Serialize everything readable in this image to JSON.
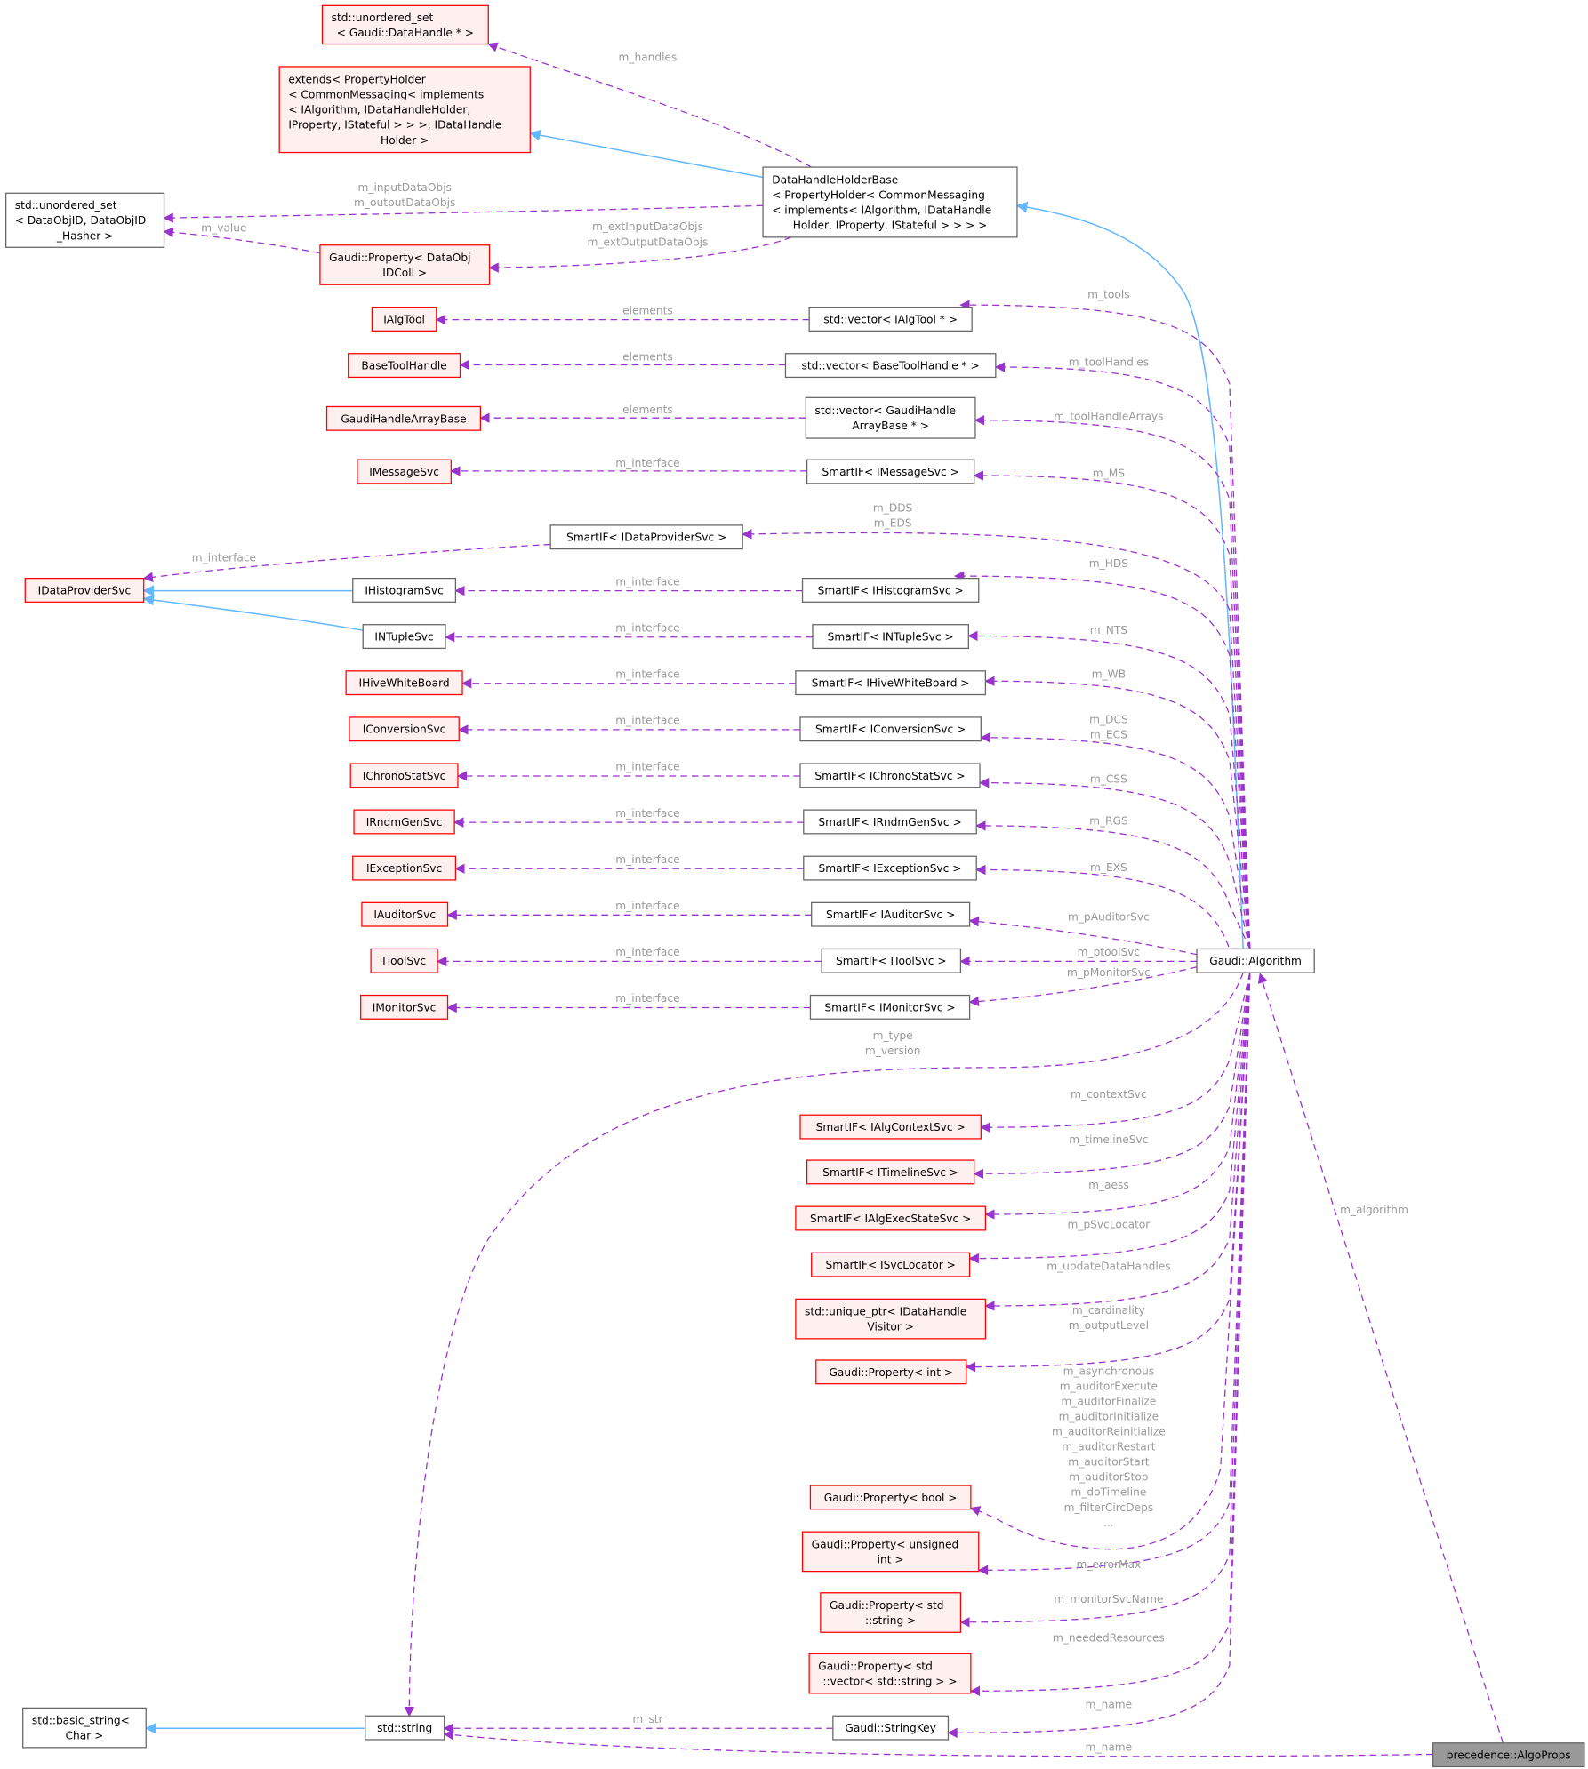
{
  "colors": {
    "usage_edge": "#9a32cd",
    "inherit_edge": "#63b8ff",
    "undocumented_border": "#ff0000",
    "undocumented_fill": "#fff0f0",
    "documented_border": "#666666",
    "focus_fill": "#999999",
    "edge_label": "#9a9a9a"
  },
  "nodes": [
    {
      "id": "uset_dh",
      "style": "red",
      "lines": [
        "std::unordered_set",
        "< Gaudi::DataHandle * >"
      ]
    },
    {
      "id": "extends",
      "style": "red",
      "lines": [
        "extends< PropertyHolder",
        "< CommonMessaging< implements",
        "< IAlgorithm, IDataHandleHolder,",
        " IProperty, IStateful > > >, IDataHandle",
        "Holder >"
      ]
    },
    {
      "id": "uset_doid",
      "style": "gray",
      "lines": [
        "std::unordered_set",
        "< DataObjID, DataObjID",
        "_Hasher >"
      ]
    },
    {
      "id": "prop_doidcoll",
      "style": "red",
      "lines": [
        "Gaudi::Property< DataObj",
        "IDColl >"
      ]
    },
    {
      "id": "dhhb",
      "style": "gray",
      "lines": [
        "DataHandleHolderBase",
        "< PropertyHolder< CommonMessaging",
        "< implements< IAlgorithm, IDataHandle",
        "Holder, IProperty, IStateful > > > >"
      ]
    },
    {
      "id": "ialgtool",
      "style": "red",
      "lines": [
        "IAlgTool"
      ]
    },
    {
      "id": "vec_ialgtool",
      "style": "gray",
      "lines": [
        "std::vector< IAlgTool * >"
      ]
    },
    {
      "id": "basetoolhandle",
      "style": "red",
      "lines": [
        "BaseToolHandle"
      ]
    },
    {
      "id": "vec_bth",
      "style": "gray",
      "lines": [
        "std::vector< BaseToolHandle * >"
      ]
    },
    {
      "id": "gharraybase",
      "style": "red",
      "lines": [
        "GaudiHandleArrayBase"
      ]
    },
    {
      "id": "vec_gha",
      "style": "gray",
      "lines": [
        "std::vector< GaudiHandle",
        "ArrayBase * >"
      ]
    },
    {
      "id": "imessagesvc",
      "style": "red",
      "lines": [
        "IMessageSvc"
      ]
    },
    {
      "id": "sif_msg",
      "style": "gray",
      "lines": [
        "SmartIF< IMessageSvc >"
      ]
    },
    {
      "id": "sif_dp",
      "style": "gray",
      "lines": [
        "SmartIF< IDataProviderSvc >"
      ]
    },
    {
      "id": "idataprovidersvc",
      "style": "red",
      "lines": [
        "IDataProviderSvc"
      ]
    },
    {
      "id": "ihistogramsvc",
      "style": "gray",
      "lines": [
        "IHistogramSvc"
      ]
    },
    {
      "id": "sif_hist",
      "style": "gray",
      "lines": [
        "SmartIF< IHistogramSvc >"
      ]
    },
    {
      "id": "intuplesvc",
      "style": "gray",
      "lines": [
        "INTupleSvc"
      ]
    },
    {
      "id": "sif_nt",
      "style": "gray",
      "lines": [
        "SmartIF< INTupleSvc >"
      ]
    },
    {
      "id": "ihivewb",
      "style": "red",
      "lines": [
        "IHiveWhiteBoard"
      ]
    },
    {
      "id": "sif_wb",
      "style": "gray",
      "lines": [
        "SmartIF< IHiveWhiteBoard >"
      ]
    },
    {
      "id": "iconvsvc",
      "style": "red",
      "lines": [
        "IConversionSvc"
      ]
    },
    {
      "id": "sif_conv",
      "style": "gray",
      "lines": [
        "SmartIF< IConversionSvc >"
      ]
    },
    {
      "id": "ichronosvc",
      "style": "red",
      "lines": [
        "IChronoStatSvc"
      ]
    },
    {
      "id": "sif_chrono",
      "style": "gray",
      "lines": [
        "SmartIF< IChronoStatSvc >"
      ]
    },
    {
      "id": "irndmsvc",
      "style": "red",
      "lines": [
        "IRndmGenSvc"
      ]
    },
    {
      "id": "sif_rndm",
      "style": "gray",
      "lines": [
        "SmartIF< IRndmGenSvc >"
      ]
    },
    {
      "id": "iexcsvc",
      "style": "red",
      "lines": [
        "IExceptionSvc"
      ]
    },
    {
      "id": "sif_exc",
      "style": "gray",
      "lines": [
        "SmartIF< IExceptionSvc >"
      ]
    },
    {
      "id": "iaudsvc",
      "style": "red",
      "lines": [
        "IAuditorSvc"
      ]
    },
    {
      "id": "sif_aud",
      "style": "gray",
      "lines": [
        "SmartIF< IAuditorSvc >"
      ]
    },
    {
      "id": "itoolsvc",
      "style": "red",
      "lines": [
        "IToolSvc"
      ]
    },
    {
      "id": "sif_tool",
      "style": "gray",
      "lines": [
        "SmartIF< IToolSvc >"
      ]
    },
    {
      "id": "imonsvc",
      "style": "red",
      "lines": [
        "IMonitorSvc"
      ]
    },
    {
      "id": "sif_mon",
      "style": "gray",
      "lines": [
        "SmartIF< IMonitorSvc >"
      ]
    },
    {
      "id": "algorithm",
      "style": "gray",
      "lines": [
        "Gaudi::Algorithm"
      ]
    },
    {
      "id": "sif_ctx",
      "style": "red",
      "lines": [
        "SmartIF< IAlgContextSvc >"
      ]
    },
    {
      "id": "sif_tl",
      "style": "red",
      "lines": [
        "SmartIF< ITimelineSvc >"
      ]
    },
    {
      "id": "sif_aes",
      "style": "red",
      "lines": [
        "SmartIF< IAlgExecStateSvc >"
      ]
    },
    {
      "id": "sif_sl",
      "style": "red",
      "lines": [
        "SmartIF< ISvcLocator >"
      ]
    },
    {
      "id": "uptr_dhv",
      "style": "red",
      "lines": [
        "std::unique_ptr< IDataHandle",
        "Visitor >"
      ]
    },
    {
      "id": "prop_int",
      "style": "red",
      "lines": [
        "Gaudi::Property< int >"
      ]
    },
    {
      "id": "prop_bool",
      "style": "red",
      "lines": [
        "Gaudi::Property< bool >"
      ]
    },
    {
      "id": "prop_uint",
      "style": "red",
      "lines": [
        "Gaudi::Property< unsigned",
        "int >"
      ]
    },
    {
      "id": "prop_str",
      "style": "red",
      "lines": [
        "Gaudi::Property< std",
        "::string >"
      ]
    },
    {
      "id": "prop_vstr",
      "style": "red",
      "lines": [
        "Gaudi::Property< std",
        "::vector< std::string > >"
      ]
    },
    {
      "id": "basic_string",
      "style": "gray",
      "lines": [
        "std::basic_string<",
        "Char >"
      ]
    },
    {
      "id": "std_string",
      "style": "gray",
      "lines": [
        "std::string"
      ]
    },
    {
      "id": "stringkey",
      "style": "gray",
      "lines": [
        "Gaudi::StringKey"
      ]
    },
    {
      "id": "algoprops",
      "style": "focus",
      "lines": [
        "precedence::AlgoProps"
      ]
    }
  ],
  "edges": [
    {
      "from": "dhhb",
      "to": "uset_dh",
      "kind": "usage",
      "label": [
        "m_handles"
      ]
    },
    {
      "from": "dhhb",
      "to": "extends",
      "kind": "inherit",
      "label": []
    },
    {
      "from": "dhhb",
      "to": "uset_doid",
      "kind": "usage",
      "label": [
        "m_inputDataObjs",
        "m_outputDataObjs"
      ]
    },
    {
      "from": "dhhb",
      "to": "prop_doidcoll",
      "kind": "usage",
      "label": [
        "m_extInputDataObjs",
        "m_extOutputDataObjs"
      ]
    },
    {
      "from": "prop_doidcoll",
      "to": "uset_doid",
      "kind": "usage",
      "label": [
        "m_value"
      ]
    },
    {
      "from": "algorithm",
      "to": "dhhb",
      "kind": "inherit",
      "label": []
    },
    {
      "from": "vec_ialgtool",
      "to": "ialgtool",
      "kind": "usage",
      "label": [
        "elements"
      ]
    },
    {
      "from": "vec_bth",
      "to": "basetoolhandle",
      "kind": "usage",
      "label": [
        "elements"
      ]
    },
    {
      "from": "vec_gha",
      "to": "gharraybase",
      "kind": "usage",
      "label": [
        "elements"
      ]
    },
    {
      "from": "sif_msg",
      "to": "imessagesvc",
      "kind": "usage",
      "label": [
        "m_interface"
      ]
    },
    {
      "from": "sif_dp",
      "to": "idataprovidersvc",
      "kind": "usage",
      "label": [
        "m_interface"
      ]
    },
    {
      "from": "ihistogramsvc",
      "to": "idataprovidersvc",
      "kind": "inherit",
      "label": []
    },
    {
      "from": "intuplesvc",
      "to": "idataprovidersvc",
      "kind": "inherit",
      "label": []
    },
    {
      "from": "sif_hist",
      "to": "ihistogramsvc",
      "kind": "usage",
      "label": [
        "m_interface"
      ]
    },
    {
      "from": "sif_nt",
      "to": "intuplesvc",
      "kind": "usage",
      "label": [
        "m_interface"
      ]
    },
    {
      "from": "sif_wb",
      "to": "ihivewb",
      "kind": "usage",
      "label": [
        "m_interface"
      ]
    },
    {
      "from": "sif_conv",
      "to": "iconvsvc",
      "kind": "usage",
      "label": [
        "m_interface"
      ]
    },
    {
      "from": "sif_chrono",
      "to": "ichronosvc",
      "kind": "usage",
      "label": [
        "m_interface"
      ]
    },
    {
      "from": "sif_rndm",
      "to": "irndmsvc",
      "kind": "usage",
      "label": [
        "m_interface"
      ]
    },
    {
      "from": "sif_exc",
      "to": "iexcsvc",
      "kind": "usage",
      "label": [
        "m_interface"
      ]
    },
    {
      "from": "sif_aud",
      "to": "iaudsvc",
      "kind": "usage",
      "label": [
        "m_interface"
      ]
    },
    {
      "from": "sif_tool",
      "to": "itoolsvc",
      "kind": "usage",
      "label": [
        "m_interface"
      ]
    },
    {
      "from": "sif_mon",
      "to": "imonsvc",
      "kind": "usage",
      "label": [
        "m_interface"
      ]
    },
    {
      "from": "algorithm",
      "to": "vec_ialgtool",
      "kind": "usage",
      "label": [
        "m_tools"
      ]
    },
    {
      "from": "algorithm",
      "to": "vec_bth",
      "kind": "usage",
      "label": [
        "m_toolHandles"
      ]
    },
    {
      "from": "algorithm",
      "to": "vec_gha",
      "kind": "usage",
      "label": [
        "m_toolHandleArrays"
      ]
    },
    {
      "from": "algorithm",
      "to": "sif_msg",
      "kind": "usage",
      "label": [
        "m_MS"
      ]
    },
    {
      "from": "algorithm",
      "to": "sif_dp",
      "kind": "usage",
      "label": [
        "m_DDS",
        "m_EDS"
      ]
    },
    {
      "from": "algorithm",
      "to": "sif_hist",
      "kind": "usage",
      "label": [
        "m_HDS"
      ]
    },
    {
      "from": "algorithm",
      "to": "sif_nt",
      "kind": "usage",
      "label": [
        "m_NTS"
      ]
    },
    {
      "from": "algorithm",
      "to": "sif_wb",
      "kind": "usage",
      "label": [
        "m_WB"
      ]
    },
    {
      "from": "algorithm",
      "to": "sif_conv",
      "kind": "usage",
      "label": [
        "m_DCS",
        "m_ECS"
      ]
    },
    {
      "from": "algorithm",
      "to": "sif_chrono",
      "kind": "usage",
      "label": [
        "m_CSS"
      ]
    },
    {
      "from": "algorithm",
      "to": "sif_rndm",
      "kind": "usage",
      "label": [
        "m_RGS"
      ]
    },
    {
      "from": "algorithm",
      "to": "sif_exc",
      "kind": "usage",
      "label": [
        "m_EXS"
      ]
    },
    {
      "from": "algorithm",
      "to": "sif_aud",
      "kind": "usage",
      "label": [
        "m_pAuditorSvc"
      ]
    },
    {
      "from": "algorithm",
      "to": "sif_tool",
      "kind": "usage",
      "label": [
        "m_ptoolSvc"
      ]
    },
    {
      "from": "algorithm",
      "to": "sif_mon",
      "kind": "usage",
      "label": [
        "m_pMonitorSvc"
      ]
    },
    {
      "from": "algorithm",
      "to": "std_string",
      "kind": "usage",
      "label": [
        "m_type",
        "m_version"
      ]
    },
    {
      "from": "algorithm",
      "to": "sif_ctx",
      "kind": "usage",
      "label": [
        "m_contextSvc"
      ]
    },
    {
      "from": "algorithm",
      "to": "sif_tl",
      "kind": "usage",
      "label": [
        "m_timelineSvc"
      ]
    },
    {
      "from": "algorithm",
      "to": "sif_aes",
      "kind": "usage",
      "label": [
        "m_aess"
      ]
    },
    {
      "from": "algorithm",
      "to": "sif_sl",
      "kind": "usage",
      "label": [
        "m_pSvcLocator"
      ]
    },
    {
      "from": "algorithm",
      "to": "uptr_dhv",
      "kind": "usage",
      "label": [
        "m_updateDataHandles"
      ]
    },
    {
      "from": "algorithm",
      "to": "prop_int",
      "kind": "usage",
      "label": [
        "m_cardinality",
        "m_outputLevel"
      ]
    },
    {
      "from": "algorithm",
      "to": "prop_bool",
      "kind": "usage",
      "label": [
        "m_asynchronous",
        "m_auditorExecute",
        "m_auditorFinalize",
        "m_auditorInitialize",
        "m_auditorReinitialize",
        "m_auditorRestart",
        "m_auditorStart",
        "m_auditorStop",
        "m_doTimeline",
        "m_filterCircDeps",
        "..."
      ]
    },
    {
      "from": "algorithm",
      "to": "prop_uint",
      "kind": "usage",
      "label": [
        "m_errorMax"
      ]
    },
    {
      "from": "algorithm",
      "to": "prop_str",
      "kind": "usage",
      "label": [
        "m_monitorSvcName"
      ]
    },
    {
      "from": "algorithm",
      "to": "prop_vstr",
      "kind": "usage",
      "label": [
        "m_neededResources"
      ]
    },
    {
      "from": "algorithm",
      "to": "stringkey",
      "kind": "usage",
      "label": [
        "m_name"
      ]
    },
    {
      "from": "stringkey",
      "to": "std_string",
      "kind": "usage",
      "label": [
        "m_str"
      ]
    },
    {
      "from": "std_string",
      "to": "basic_string",
      "kind": "inherit",
      "label": []
    },
    {
      "from": "algoprops",
      "to": "algorithm",
      "kind": "usage",
      "label": [
        "m_algorithm"
      ]
    },
    {
      "from": "algoprops",
      "to": "std_string",
      "kind": "usage",
      "label": [
        "m_name"
      ]
    }
  ]
}
